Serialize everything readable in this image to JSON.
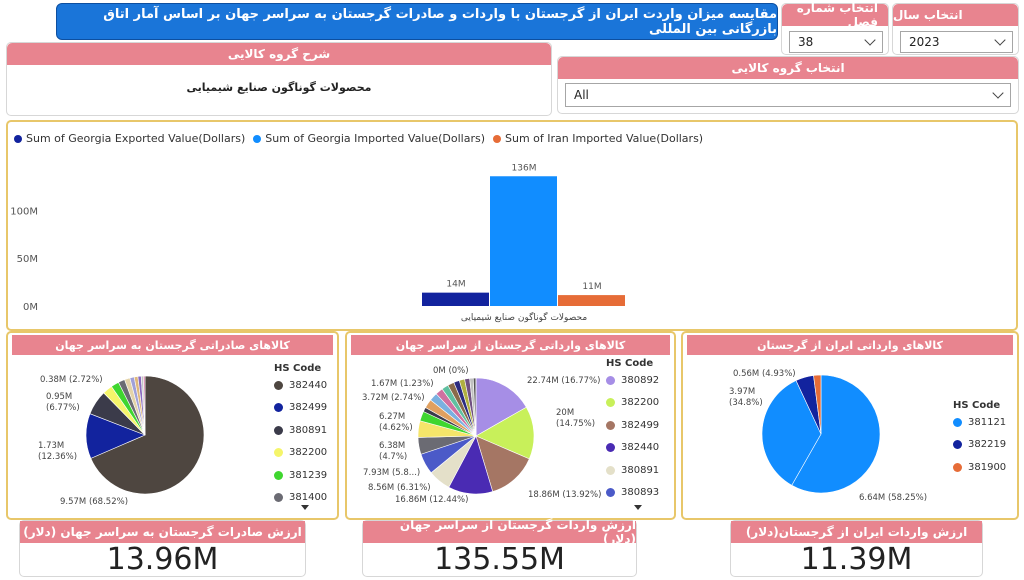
{
  "header": {
    "title": "مقایسه میزان واردت ایران از گرجستان با واردات و صادرات گرجستان به سراسر جهان بر اساس آمار اتاق بازرگانی بین المللی"
  },
  "slicers": {
    "chapter": {
      "label": "انتخاب شماره فصل",
      "value": "38"
    },
    "year": {
      "label": "انتخاب سال",
      "value": "2023"
    },
    "group": {
      "label": "انتخاب گروه کالایی",
      "value": "All"
    }
  },
  "group_desc": {
    "label": "شرح گروه کالایی",
    "value": "محصولات گوناگون صنایع شیمیایی"
  },
  "colors": {
    "accent": "#1a75d9",
    "header_pink": "#e8848f",
    "panel_border": "#e8c76a",
    "navy": "#12239e",
    "blue": "#118dff",
    "orange": "#e66c37"
  },
  "bar_chart": {
    "legend": [
      {
        "name": "Sum of Georgia Exported Value(Dollars)",
        "color": "#12239e"
      },
      {
        "name": "Sum of Georgia Imported Value(Dollars)",
        "color": "#118dff"
      },
      {
        "name": "Sum of Iran Imported Value(Dollars)",
        "color": "#e66c37"
      }
    ],
    "category": "محصولات گوناگون صنایع شیمیایی",
    "y_ticks": [
      "0M",
      "50M",
      "100M"
    ]
  },
  "chart_data": [
    {
      "type": "bar",
      "categories": [
        "محصولات گوناگون صنایع شیمیایی"
      ],
      "series": [
        {
          "name": "Sum of Georgia Exported Value(Dollars)",
          "values": [
            13.96
          ],
          "label": "14M"
        },
        {
          "name": "Sum of Georgia Imported Value(Dollars)",
          "values": [
            135.55
          ],
          "label": "136M"
        },
        {
          "name": "Sum of Iran Imported Value(Dollars)",
          "values": [
            11.39
          ],
          "label": "11M"
        }
      ],
      "ylim": [
        0,
        140
      ],
      "y_ticks": [
        0,
        50,
        100
      ],
      "legend": "top-left",
      "grid": false
    },
    {
      "type": "pie",
      "title": "کالاهای صادراتی گرجستان به سراسر جهان",
      "legend_title": "HS Code",
      "legend": [
        {
          "name": "382440",
          "color": "#4e4640"
        },
        {
          "name": "382499",
          "color": "#12239e"
        },
        {
          "name": "380891",
          "color": "#3b3b4a"
        },
        {
          "name": "382200",
          "color": "#f5f56a"
        },
        {
          "name": "381239",
          "color": "#3fd62f"
        },
        {
          "name": "381400",
          "color": "#6b6b73"
        }
      ],
      "slices": [
        {
          "value": 68.52,
          "color": "#4e4640",
          "label": "9.57M (68.52%)"
        },
        {
          "value": 12.36,
          "color": "#12239e",
          "label": "1.73M (12.36%)"
        },
        {
          "value": 6.77,
          "color": "#3b3b4a",
          "label": "0.95M (6.77%)"
        },
        {
          "value": 2.72,
          "color": "#f5f56a",
          "label": "0.38M (2.72%)"
        },
        {
          "value": 2.2,
          "color": "#3fd62f"
        },
        {
          "value": 1.8,
          "color": "#6b6b73"
        },
        {
          "value": 1.5,
          "color": "#e4d3a8"
        },
        {
          "value": 1.2,
          "color": "#a0a0d8"
        },
        {
          "value": 1.0,
          "color": "#e0b87a"
        },
        {
          "value": 0.9,
          "color": "#8a6bbf"
        },
        {
          "value": 0.6,
          "color": "#c5c5c5"
        },
        {
          "value": 0.43,
          "color": "#d070a0"
        }
      ]
    },
    {
      "type": "pie",
      "title": "کالاهای وارداتی گرجستان از سراسر جهان",
      "legend_title": "HS Code",
      "legend": [
        {
          "name": "380892",
          "color": "#a68ee6"
        },
        {
          "name": "382200",
          "color": "#c8f05a"
        },
        {
          "name": "382499",
          "color": "#a57664"
        },
        {
          "name": "382440",
          "color": "#4a2bb3"
        },
        {
          "name": "380891",
          "color": "#e4e0c9"
        },
        {
          "name": "380893",
          "color": "#4b5ac8"
        }
      ],
      "slices": [
        {
          "value": 16.77,
          "color": "#a68ee6",
          "label": "22.74M (16.77%)"
        },
        {
          "value": 14.75,
          "color": "#c8f05a",
          "label": "20M (14.75%)"
        },
        {
          "value": 13.92,
          "color": "#a57664",
          "label": "18.86M (13.92%)"
        },
        {
          "value": 12.44,
          "color": "#4a2bb3",
          "label": "16.86M (12.44%)"
        },
        {
          "value": 6.31,
          "color": "#e4e0c9",
          "label": "8.56M (6.31%)"
        },
        {
          "value": 5.85,
          "color": "#4b5ac8",
          "label": "7.93M (5.8...)"
        },
        {
          "value": 4.7,
          "color": "#6b6b73",
          "label": "6.38M (4.7%)"
        },
        {
          "value": 4.62,
          "color": "#f5e56a",
          "label": "6.27M (4.62%)"
        },
        {
          "value": 2.74,
          "color": "#3fd62f",
          "label": "3.72M (2.74%)"
        },
        {
          "value": 1.23,
          "color": "#3b3b4a",
          "label": "1.67M (1.23%)"
        },
        {
          "value": 2.5,
          "color": "#e0a060"
        },
        {
          "value": 2.3,
          "color": "#7ab0e0"
        },
        {
          "value": 2.1,
          "color": "#d070a0"
        },
        {
          "value": 1.9,
          "color": "#60c0a0"
        },
        {
          "value": 1.8,
          "color": "#8a6b4a"
        },
        {
          "value": 1.6,
          "color": "#2b2b80"
        },
        {
          "value": 1.5,
          "color": "#b0b040"
        },
        {
          "value": 1.4,
          "color": "#705080"
        },
        {
          "value": 1.0,
          "color": "#c0c0c0"
        },
        {
          "value": 0.75,
          "color": "#555555"
        },
        {
          "value": 0.01,
          "color": "#999999",
          "label": "0M (0%)"
        }
      ]
    },
    {
      "type": "pie",
      "title": "کالاهای وارداتی ایران از گرجستان",
      "legend_title": "HS Code",
      "legend": [
        {
          "name": "381121",
          "color": "#118dff"
        },
        {
          "name": "382219",
          "color": "#12239e"
        },
        {
          "name": "381900",
          "color": "#e66c37"
        }
      ],
      "slices": [
        {
          "value": 58.25,
          "color": "#118dff",
          "label": "6.64M (58.25%)"
        },
        {
          "value": 34.8,
          "color": "#118dff",
          "label": "3.97M (34.8%)"
        },
        {
          "value": 4.93,
          "color": "#12239e",
          "label": "0.56M (4.93%)"
        },
        {
          "value": 2.02,
          "color": "#e66c37"
        }
      ]
    }
  ],
  "pies": {
    "export": {
      "title": "کالاهای صادراتی گرجستان به سراسر جهان",
      "legend_title": "HS Code",
      "codes": [
        "382440",
        "382499",
        "380891",
        "382200",
        "381239",
        "381400"
      ]
    },
    "import": {
      "title": "کالاهای وارداتی گرجستان از سراسر جهان",
      "legend_title": "HS Code",
      "codes": [
        "380892",
        "382200",
        "382499",
        "382440",
        "380891",
        "380893"
      ]
    },
    "iran": {
      "title": "کالاهای وارداتی ایران از گرجستان",
      "legend_title": "HS Code",
      "codes": [
        "381121",
        "382219",
        "381900"
      ]
    }
  },
  "kpis": {
    "export": {
      "label": "ارزش صادرات گرجستان به سراسر جهان (دلار)",
      "value": "13.96M"
    },
    "import": {
      "label": "ارزش واردات گرجستان از سراسر جهان (دلار)",
      "value": "135.55M"
    },
    "iran": {
      "label": "ارزش واردات ایران از گرجستان(دلار)",
      "value": "11.39M"
    }
  }
}
